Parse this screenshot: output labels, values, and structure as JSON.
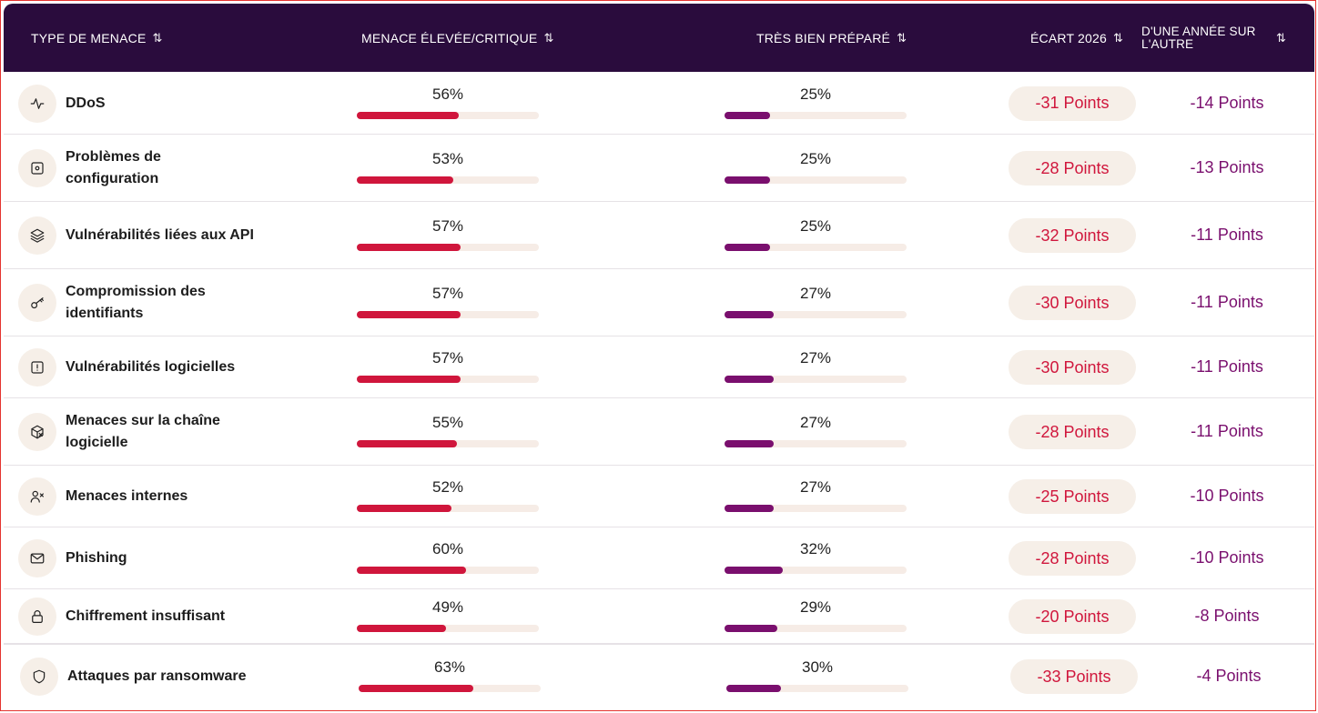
{
  "header": {
    "col_type": "TYPE DE MENACE",
    "col_threat": "MENACE ÉLEVÉE/CRITIQUE",
    "col_prepared": "TRÈS BIEN PRÉPARÉ",
    "col_gap": "ÉCART 2026",
    "col_yoy_line1": "D'UNE ANNÉE SUR",
    "col_yoy_line2": "L'AUTRE",
    "sort_glyph": "⇅"
  },
  "colors": {
    "header_bg": "#2a0c3d",
    "threat_bar": "#d0163c",
    "prepared_bar": "#7a0f6e",
    "pill_bg": "#f6efe8"
  },
  "rows": [
    {
      "icon": "activity-icon",
      "name": "DDoS",
      "threat_label": "56%",
      "threat": 56,
      "prepared_label": "25%",
      "prepared": 25,
      "gap": "-31 Points",
      "yoy": "-14 Points"
    },
    {
      "icon": "settings-box-icon",
      "name": "Problèmes de configuration",
      "threat_label": "53%",
      "threat": 53,
      "prepared_label": "25%",
      "prepared": 25,
      "gap": "-28 Points",
      "yoy": "-13 Points"
    },
    {
      "icon": "layers-icon",
      "name": "Vulnérabilités liées aux API",
      "threat_label": "57%",
      "threat": 57,
      "prepared_label": "25%",
      "prepared": 25,
      "gap": "-32 Points",
      "yoy": "-11 Points"
    },
    {
      "icon": "key-icon",
      "name": "Compromission des identifiants",
      "threat_label": "57%",
      "threat": 57,
      "prepared_label": "27%",
      "prepared": 27,
      "gap": "-30 Points",
      "yoy": "-11 Points"
    },
    {
      "icon": "alert-square-icon",
      "name": "Vulnérabilités logicielles",
      "threat_label": "57%",
      "threat": 57,
      "prepared_label": "27%",
      "prepared": 27,
      "gap": "-30 Points",
      "yoy": "-11 Points"
    },
    {
      "icon": "package-x-icon",
      "name": "Menaces sur la chaîne logicielle",
      "threat_label": "55%",
      "threat": 55,
      "prepared_label": "27%",
      "prepared": 27,
      "gap": "-28 Points",
      "yoy": "-11 Points"
    },
    {
      "icon": "user-x-icon",
      "name": "Menaces internes",
      "threat_label": "52%",
      "threat": 52,
      "prepared_label": "27%",
      "prepared": 27,
      "gap": "-25 Points",
      "yoy": "-10 Points"
    },
    {
      "icon": "mail-icon",
      "name": "Phishing",
      "threat_label": "60%",
      "threat": 60,
      "prepared_label": "32%",
      "prepared": 32,
      "gap": "-28 Points",
      "yoy": "-10 Points"
    },
    {
      "icon": "lock-icon",
      "name": "Chiffrement insuffisant",
      "threat_label": "49%",
      "threat": 49,
      "prepared_label": "29%",
      "prepared": 29,
      "gap": "-20 Points",
      "yoy": "-8 Points"
    },
    {
      "icon": "shield-icon",
      "name": "Attaques par ransomware",
      "threat_label": "63%",
      "threat": 63,
      "prepared_label": "30%",
      "prepared": 30,
      "gap": "-33 Points",
      "yoy": "-4 Points"
    }
  ]
}
